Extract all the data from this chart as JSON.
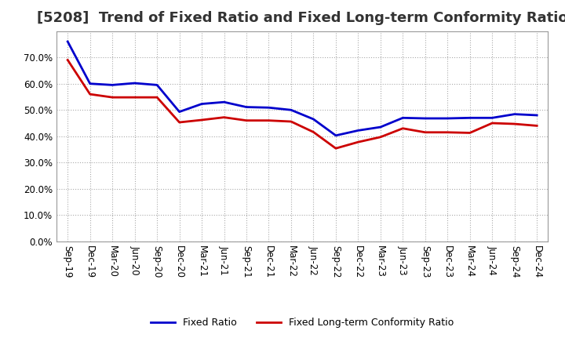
{
  "title": "[5208]  Trend of Fixed Ratio and Fixed Long-term Conformity Ratio",
  "labels": [
    "Sep-19",
    "Dec-19",
    "Mar-20",
    "Jun-20",
    "Sep-20",
    "Dec-20",
    "Mar-21",
    "Jun-21",
    "Sep-21",
    "Dec-21",
    "Mar-22",
    "Jun-22",
    "Sep-22",
    "Dec-22",
    "Mar-23",
    "Jun-23",
    "Sep-23",
    "Dec-23",
    "Mar-24",
    "Jun-24",
    "Sep-24",
    "Dec-24"
  ],
  "fixed_ratio": [
    0.76,
    0.6,
    0.595,
    0.602,
    0.595,
    0.493,
    0.523,
    0.53,
    0.511,
    0.509,
    0.5,
    0.465,
    0.403,
    0.422,
    0.435,
    0.47,
    0.468,
    0.468,
    0.47,
    0.47,
    0.484,
    0.48
  ],
  "fixed_lt_ratio": [
    0.69,
    0.56,
    0.548,
    0.548,
    0.548,
    0.453,
    0.462,
    0.472,
    0.46,
    0.46,
    0.456,
    0.416,
    0.354,
    0.378,
    0.397,
    0.43,
    0.415,
    0.415,
    0.413,
    0.45,
    0.447,
    0.44
  ],
  "fixed_ratio_color": "#0000CC",
  "fixed_lt_ratio_color": "#CC0000",
  "ylim": [
    0.0,
    0.8
  ],
  "yticks": [
    0.0,
    0.1,
    0.2,
    0.3,
    0.4,
    0.5,
    0.6,
    0.7
  ],
  "background_color": "#FFFFFF",
  "plot_bg_color": "#FFFFFF",
  "grid_color": "#AAAAAA",
  "legend_fixed": "Fixed Ratio",
  "legend_fixed_lt": "Fixed Long-term Conformity Ratio",
  "title_fontsize": 13,
  "tick_fontsize": 8.5,
  "line_width": 2.0
}
